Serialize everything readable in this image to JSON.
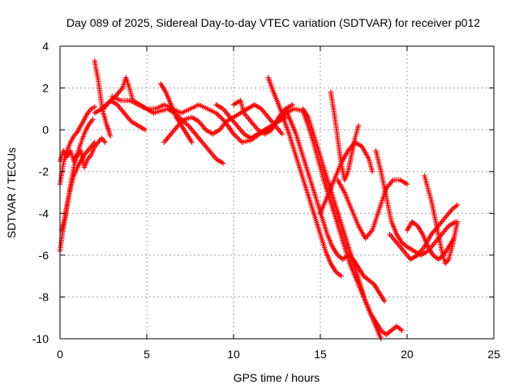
{
  "chart_data": {
    "type": "scatter",
    "title": "Day 089 of 2025, Sidereal Day-to-day VTEC variation (SDTVAR) for receiver p012",
    "xlabel": "GPS time / hours",
    "ylabel": "SDTVAR / TECUs",
    "xlim": [
      0,
      25
    ],
    "ylim": [
      -10,
      4
    ],
    "xticks": [
      "0",
      "5",
      "10",
      "15",
      "20",
      "25"
    ],
    "yticks": [
      "4",
      "2",
      "0",
      "-2",
      "-4",
      "-6",
      "-8",
      "-10"
    ],
    "grid": true,
    "marker": "plus",
    "color": "#ff0000",
    "series": [
      {
        "points": [
          [
            0.0,
            -5.8
          ],
          [
            0.2,
            -4.6
          ],
          [
            0.4,
            -3.6
          ],
          [
            0.6,
            -2.8
          ],
          [
            0.8,
            -2.2
          ],
          [
            1.0,
            -1.8
          ],
          [
            1.2,
            -1.5
          ],
          [
            1.4,
            -1.2
          ],
          [
            1.6,
            -1.0
          ],
          [
            1.8,
            -0.8
          ],
          [
            2.0,
            -0.6
          ]
        ]
      },
      {
        "points": [
          [
            0.0,
            -2.6
          ],
          [
            0.2,
            -1.6
          ],
          [
            0.4,
            -1.0
          ],
          [
            0.6,
            -0.6
          ],
          [
            0.8,
            -0.3
          ],
          [
            1.0,
            -0.1
          ],
          [
            1.2,
            0.2
          ],
          [
            1.4,
            0.5
          ],
          [
            1.6,
            0.8
          ],
          [
            1.8,
            1.0
          ],
          [
            2.0,
            1.1
          ]
        ]
      },
      {
        "points": [
          [
            0.1,
            -4.8
          ],
          [
            0.3,
            -4.2
          ],
          [
            0.5,
            -3.2
          ],
          [
            0.7,
            -2.2
          ],
          [
            0.9,
            -1.4
          ],
          [
            1.1,
            -0.9
          ],
          [
            1.3,
            -0.4
          ],
          [
            1.5,
            0.0
          ],
          [
            1.7,
            0.3
          ],
          [
            1.9,
            0.5
          ]
        ]
      },
      {
        "points": [
          [
            0.0,
            -1.5
          ],
          [
            0.2,
            -1.0
          ],
          [
            0.4,
            -1.3
          ],
          [
            0.6,
            -1.0
          ],
          [
            0.8,
            -1.5
          ],
          [
            1.0,
            -1.2
          ],
          [
            1.2,
            -1.0
          ],
          [
            1.4,
            -1.8
          ],
          [
            1.6,
            -1.4
          ],
          [
            1.8,
            -1.2
          ],
          [
            2.0,
            -0.8
          ],
          [
            2.2,
            -0.6
          ],
          [
            2.4,
            -0.4
          ],
          [
            2.6,
            -0.6
          ]
        ]
      },
      {
        "points": [
          [
            2.0,
            3.3
          ],
          [
            2.1,
            2.8
          ],
          [
            2.2,
            2.4
          ],
          [
            2.3,
            1.8
          ],
          [
            2.4,
            1.2
          ],
          [
            2.5,
            0.8
          ],
          [
            2.6,
            0.5
          ],
          [
            2.7,
            0.2
          ],
          [
            2.8,
            0.0
          ],
          [
            2.9,
            -0.3
          ]
        ]
      },
      {
        "points": [
          [
            2.0,
            0.8
          ],
          [
            2.4,
            1.0
          ],
          [
            2.8,
            1.3
          ],
          [
            3.2,
            1.6
          ],
          [
            3.6,
            2.0
          ],
          [
            3.8,
            2.5
          ],
          [
            4.0,
            2.0
          ],
          [
            4.2,
            1.4
          ],
          [
            4.6,
            1.2
          ],
          [
            5.0,
            1.0
          ],
          [
            5.4,
            0.8
          ],
          [
            5.8,
            0.9
          ],
          [
            6.2,
            1.0
          ],
          [
            6.6,
            0.8
          ],
          [
            7.0,
            0.5
          ],
          [
            7.4,
            0.2
          ],
          [
            7.8,
            -0.2
          ],
          [
            8.2,
            -0.6
          ],
          [
            8.6,
            -1.0
          ],
          [
            9.0,
            -1.4
          ],
          [
            9.4,
            -1.6
          ]
        ]
      },
      {
        "points": [
          [
            2.5,
            1.0
          ],
          [
            2.9,
            1.4
          ],
          [
            3.3,
            1.2
          ],
          [
            3.7,
            0.8
          ],
          [
            4.1,
            0.4
          ],
          [
            4.5,
            0.2
          ],
          [
            4.9,
            0.0
          ]
        ]
      },
      {
        "points": [
          [
            3.0,
            1.6
          ],
          [
            3.5,
            1.4
          ],
          [
            4.0,
            1.4
          ],
          [
            4.5,
            1.2
          ],
          [
            5.0,
            1.0
          ],
          [
            5.5,
            1.0
          ],
          [
            6.0,
            1.2
          ],
          [
            6.5,
            1.0
          ],
          [
            7.0,
            0.8
          ],
          [
            7.5,
            1.0
          ],
          [
            8.0,
            1.2
          ],
          [
            8.5,
            1.0
          ],
          [
            9.0,
            0.8
          ],
          [
            9.5,
            0.4
          ],
          [
            10.0,
            -0.2
          ],
          [
            10.5,
            -0.6
          ],
          [
            11.0,
            -0.5
          ],
          [
            11.5,
            -0.2
          ],
          [
            12.0,
            0.0
          ],
          [
            12.5,
            0.4
          ],
          [
            13.0,
            0.8
          ],
          [
            13.5,
            1.0
          ],
          [
            14.0,
            0.9
          ],
          [
            14.3,
            0.2
          ],
          [
            14.6,
            -0.6
          ],
          [
            14.9,
            -1.5
          ],
          [
            15.2,
            -2.4
          ],
          [
            15.5,
            -3.2
          ],
          [
            15.8,
            -4.0
          ],
          [
            16.1,
            -4.8
          ],
          [
            16.4,
            -5.6
          ],
          [
            16.7,
            -6.4
          ],
          [
            17.0,
            -7.0
          ],
          [
            17.3,
            -7.6
          ],
          [
            17.6,
            -8.2
          ],
          [
            17.9,
            -8.8
          ],
          [
            18.2,
            -9.4
          ],
          [
            18.5,
            -10.0
          ]
        ]
      },
      {
        "points": [
          [
            5.8,
            2.2
          ],
          [
            6.1,
            1.8
          ],
          [
            6.4,
            1.2
          ],
          [
            6.7,
            0.6
          ],
          [
            7.0,
            0.2
          ],
          [
            7.3,
            -0.2
          ],
          [
            7.6,
            -0.6
          ]
        ]
      },
      {
        "points": [
          [
            6.0,
            -0.6
          ],
          [
            6.4,
            -0.2
          ],
          [
            6.8,
            0.2
          ],
          [
            7.2,
            0.5
          ],
          [
            7.6,
            0.6
          ],
          [
            8.0,
            0.4
          ],
          [
            8.4,
            0.0
          ],
          [
            8.8,
            -0.2
          ],
          [
            9.2,
            0.0
          ],
          [
            9.6,
            0.4
          ],
          [
            10.0,
            0.6
          ],
          [
            10.4,
            0.8
          ],
          [
            10.8,
            1.0
          ],
          [
            11.2,
            1.2
          ],
          [
            11.6,
            1.0
          ],
          [
            12.0,
            0.6
          ],
          [
            12.4,
            0.2
          ],
          [
            12.8,
            -0.2
          ]
        ]
      },
      {
        "points": [
          [
            9.0,
            1.2
          ],
          [
            9.4,
            1.0
          ],
          [
            9.8,
            0.6
          ],
          [
            10.2,
            0.2
          ],
          [
            10.6,
            -0.2
          ],
          [
            11.0,
            -0.4
          ],
          [
            11.4,
            -0.2
          ],
          [
            11.8,
            0.0
          ],
          [
            12.2,
            0.2
          ],
          [
            12.6,
            0.4
          ],
          [
            13.0,
            0.6
          ]
        ]
      },
      {
        "points": [
          [
            10.0,
            1.2
          ],
          [
            10.4,
            1.4
          ],
          [
            10.6,
            0.8
          ],
          [
            11.0,
            0.4
          ],
          [
            11.4,
            0.0
          ],
          [
            11.8,
            -0.2
          ],
          [
            12.2,
            0.0
          ],
          [
            12.6,
            0.6
          ],
          [
            13.0,
            1.0
          ],
          [
            13.4,
            1.2
          ]
        ]
      },
      {
        "points": [
          [
            12.0,
            2.5
          ],
          [
            12.3,
            1.8
          ],
          [
            12.6,
            1.2
          ],
          [
            12.9,
            0.5
          ],
          [
            13.2,
            -0.2
          ],
          [
            13.5,
            -1.0
          ],
          [
            13.8,
            -1.8
          ],
          [
            14.1,
            -2.6
          ],
          [
            14.4,
            -3.4
          ],
          [
            14.7,
            -4.2
          ],
          [
            15.0,
            -5.0
          ],
          [
            15.3,
            -5.8
          ],
          [
            15.6,
            -6.4
          ],
          [
            15.9,
            -6.8
          ],
          [
            16.2,
            -7.0
          ]
        ]
      },
      {
        "points": [
          [
            13.0,
            1.0
          ],
          [
            13.3,
            0.4
          ],
          [
            13.6,
            -0.2
          ],
          [
            13.9,
            -1.0
          ],
          [
            14.2,
            -1.8
          ],
          [
            14.5,
            -2.6
          ],
          [
            14.8,
            -3.4
          ],
          [
            15.1,
            -4.2
          ],
          [
            15.4,
            -5.0
          ],
          [
            15.7,
            -5.6
          ],
          [
            16.0,
            -6.0
          ],
          [
            16.3,
            -6.2
          ],
          [
            16.6,
            -6.0
          ],
          [
            16.9,
            -6.2
          ],
          [
            17.2,
            -6.6
          ],
          [
            17.5,
            -7.0
          ],
          [
            17.8,
            -7.2
          ],
          [
            18.1,
            -7.4
          ],
          [
            18.4,
            -7.8
          ],
          [
            18.7,
            -8.2
          ]
        ]
      },
      {
        "points": [
          [
            14.0,
            1.0
          ],
          [
            14.3,
            0.6
          ],
          [
            14.6,
            -0.2
          ],
          [
            14.9,
            -1.0
          ],
          [
            15.2,
            -1.8
          ],
          [
            15.5,
            -2.6
          ],
          [
            15.8,
            -3.4
          ],
          [
            16.1,
            -4.2
          ],
          [
            16.4,
            -5.0
          ],
          [
            16.7,
            -5.8
          ],
          [
            17.0,
            -6.6
          ],
          [
            17.3,
            -7.4
          ],
          [
            17.6,
            -8.2
          ],
          [
            17.9,
            -8.8
          ],
          [
            18.2,
            -9.2
          ],
          [
            18.5,
            -9.6
          ],
          [
            18.8,
            -9.8
          ],
          [
            19.1,
            -9.6
          ],
          [
            19.4,
            -9.4
          ],
          [
            19.7,
            -9.6
          ]
        ]
      },
      {
        "points": [
          [
            15.6,
            1.8
          ],
          [
            15.8,
            0.8
          ],
          [
            16.0,
            -0.4
          ],
          [
            16.2,
            -1.6
          ],
          [
            16.4,
            -2.4
          ],
          [
            16.6,
            -2.0
          ],
          [
            16.8,
            -1.2
          ],
          [
            17.0,
            -0.4
          ],
          [
            17.2,
            0.2
          ]
        ]
      },
      {
        "points": [
          [
            15.0,
            -4.0
          ],
          [
            15.4,
            -3.2
          ],
          [
            15.8,
            -2.4
          ],
          [
            16.2,
            -1.6
          ],
          [
            16.6,
            -1.0
          ],
          [
            17.0,
            -0.6
          ],
          [
            17.4,
            -0.8
          ],
          [
            17.8,
            -1.4
          ],
          [
            18.0,
            -2.0
          ]
        ]
      },
      {
        "points": [
          [
            16.0,
            -2.4
          ],
          [
            16.4,
            -3.0
          ],
          [
            16.8,
            -3.8
          ],
          [
            17.2,
            -4.6
          ],
          [
            17.6,
            -5.2
          ],
          [
            18.0,
            -4.8
          ],
          [
            18.4,
            -3.8
          ],
          [
            18.8,
            -2.8
          ],
          [
            19.2,
            -2.4
          ],
          [
            19.6,
            -2.4
          ],
          [
            20.0,
            -2.6
          ]
        ]
      },
      {
        "points": [
          [
            18.2,
            -1.0
          ],
          [
            18.5,
            -2.0
          ],
          [
            18.8,
            -3.2
          ],
          [
            19.1,
            -4.4
          ],
          [
            19.4,
            -5.0
          ],
          [
            19.7,
            -5.4
          ],
          [
            20.0,
            -5.6
          ],
          [
            20.4,
            -5.8
          ],
          [
            20.8,
            -6.0
          ],
          [
            21.2,
            -5.8
          ],
          [
            21.6,
            -5.4
          ],
          [
            22.0,
            -5.0
          ],
          [
            22.4,
            -4.6
          ],
          [
            22.8,
            -4.4
          ]
        ]
      },
      {
        "points": [
          [
            19.0,
            -5.0
          ],
          [
            19.4,
            -5.4
          ],
          [
            19.8,
            -5.8
          ],
          [
            20.2,
            -6.2
          ],
          [
            20.6,
            -6.0
          ],
          [
            21.0,
            -5.6
          ],
          [
            21.4,
            -5.0
          ],
          [
            21.8,
            -4.6
          ],
          [
            22.2,
            -4.2
          ],
          [
            22.6,
            -3.8
          ],
          [
            22.9,
            -3.6
          ]
        ]
      },
      {
        "points": [
          [
            20.0,
            -4.8
          ],
          [
            20.3,
            -4.4
          ],
          [
            20.6,
            -4.6
          ],
          [
            20.9,
            -5.0
          ],
          [
            21.2,
            -5.6
          ],
          [
            21.5,
            -6.0
          ],
          [
            21.8,
            -6.2
          ],
          [
            22.1,
            -6.0
          ],
          [
            22.4,
            -5.6
          ],
          [
            22.7,
            -5.2
          ]
        ]
      },
      {
        "points": [
          [
            21.0,
            -2.2
          ],
          [
            21.2,
            -2.8
          ],
          [
            21.4,
            -3.4
          ],
          [
            21.6,
            -4.2
          ],
          [
            21.8,
            -5.0
          ],
          [
            22.0,
            -5.8
          ],
          [
            22.2,
            -6.4
          ],
          [
            22.4,
            -6.2
          ],
          [
            22.6,
            -5.6
          ],
          [
            22.8,
            -4.8
          ],
          [
            22.9,
            -4.4
          ]
        ]
      }
    ]
  }
}
